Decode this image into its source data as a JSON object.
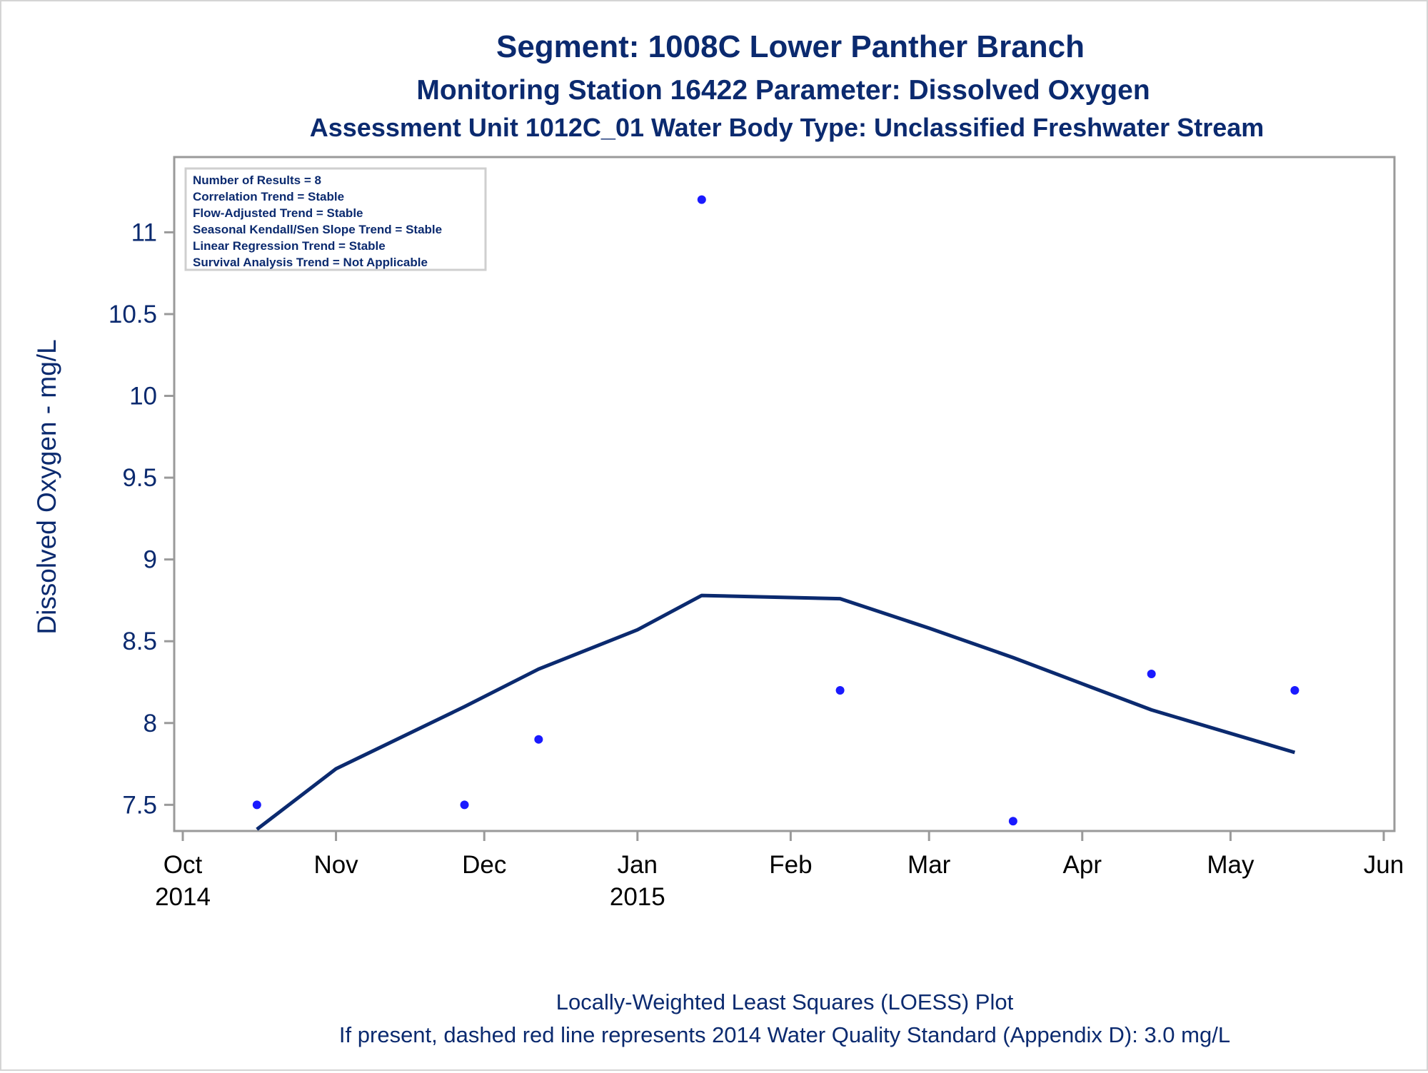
{
  "titles": {
    "line1": "Segment: 1008C  Lower Panther Branch",
    "line2": "Monitoring Station 16422 Parameter: Dissolved Oxygen",
    "line3": "Assessment Unit 1012C_01   Water Body Type: Unclassified Freshwater Stream"
  },
  "stats_box": [
    "Number of Results = 8",
    "Correlation Trend = Stable",
    "Flow-Adjusted Trend = Stable",
    "Seasonal Kendall/Sen Slope Trend = Stable",
    "Linear Regression Trend = Stable",
    "Survival Analysis Trend = Not Applicable"
  ],
  "footnotes": {
    "line1": "Locally-Weighted Least Squares (LOESS) Plot",
    "line2": "If present, dashed red line represents 2014 Water Quality Standard (Appendix D): 3.0 mg/L"
  },
  "colors": {
    "text": "#0b2a6f",
    "points": "#1a1aff",
    "loess": "#0b2a6f",
    "frame": "#9a9a9a"
  },
  "chart_data": {
    "type": "scatter",
    "ylabel": "Dissolved Oxygen - mg/L",
    "ylim": [
      7.34,
      11.46
    ],
    "xlim": [
      "2014-10-01",
      "2015-06-01"
    ],
    "y_ticks": [
      7.5,
      8,
      8.5,
      9,
      9.5,
      10,
      10.5,
      11
    ],
    "y_tick_labels": [
      "7.5",
      "8",
      "8.5",
      "9",
      "9.5",
      "10",
      "10.5",
      "11"
    ],
    "x_ticks": [
      {
        "date": "2014-10-01",
        "label": "Oct",
        "year": "2014"
      },
      {
        "date": "2014-11-01",
        "label": "Nov",
        "year": ""
      },
      {
        "date": "2014-12-01",
        "label": "Dec",
        "year": ""
      },
      {
        "date": "2015-01-01",
        "label": "Jan",
        "year": "2015"
      },
      {
        "date": "2015-02-01",
        "label": "Feb",
        "year": ""
      },
      {
        "date": "2015-03-01",
        "label": "Mar",
        "year": ""
      },
      {
        "date": "2015-04-01",
        "label": "Apr",
        "year": ""
      },
      {
        "date": "2015-05-01",
        "label": "May",
        "year": ""
      },
      {
        "date": "2015-06-01",
        "label": "Jun",
        "year": ""
      }
    ],
    "grid": false,
    "legend": "top-left",
    "points": [
      {
        "x": "2014-10-16",
        "y": 7.5
      },
      {
        "x": "2014-11-27",
        "y": 7.5
      },
      {
        "x": "2014-12-12",
        "y": 7.9
      },
      {
        "x": "2015-01-14",
        "y": 11.2
      },
      {
        "x": "2015-02-11",
        "y": 8.2
      },
      {
        "x": "2015-03-18",
        "y": 7.4
      },
      {
        "x": "2015-04-15",
        "y": 8.3
      },
      {
        "x": "2015-05-14",
        "y": 8.2
      }
    ],
    "loess": [
      {
        "x": "2014-10-16",
        "y": 7.35
      },
      {
        "x": "2014-11-01",
        "y": 7.72
      },
      {
        "x": "2014-11-27",
        "y": 8.1
      },
      {
        "x": "2014-12-12",
        "y": 8.33
      },
      {
        "x": "2015-01-01",
        "y": 8.57
      },
      {
        "x": "2015-01-14",
        "y": 8.78
      },
      {
        "x": "2015-02-11",
        "y": 8.76
      },
      {
        "x": "2015-03-01",
        "y": 8.58
      },
      {
        "x": "2015-03-18",
        "y": 8.4
      },
      {
        "x": "2015-04-01",
        "y": 8.24
      },
      {
        "x": "2015-04-15",
        "y": 8.08
      },
      {
        "x": "2015-05-14",
        "y": 7.82
      }
    ]
  }
}
